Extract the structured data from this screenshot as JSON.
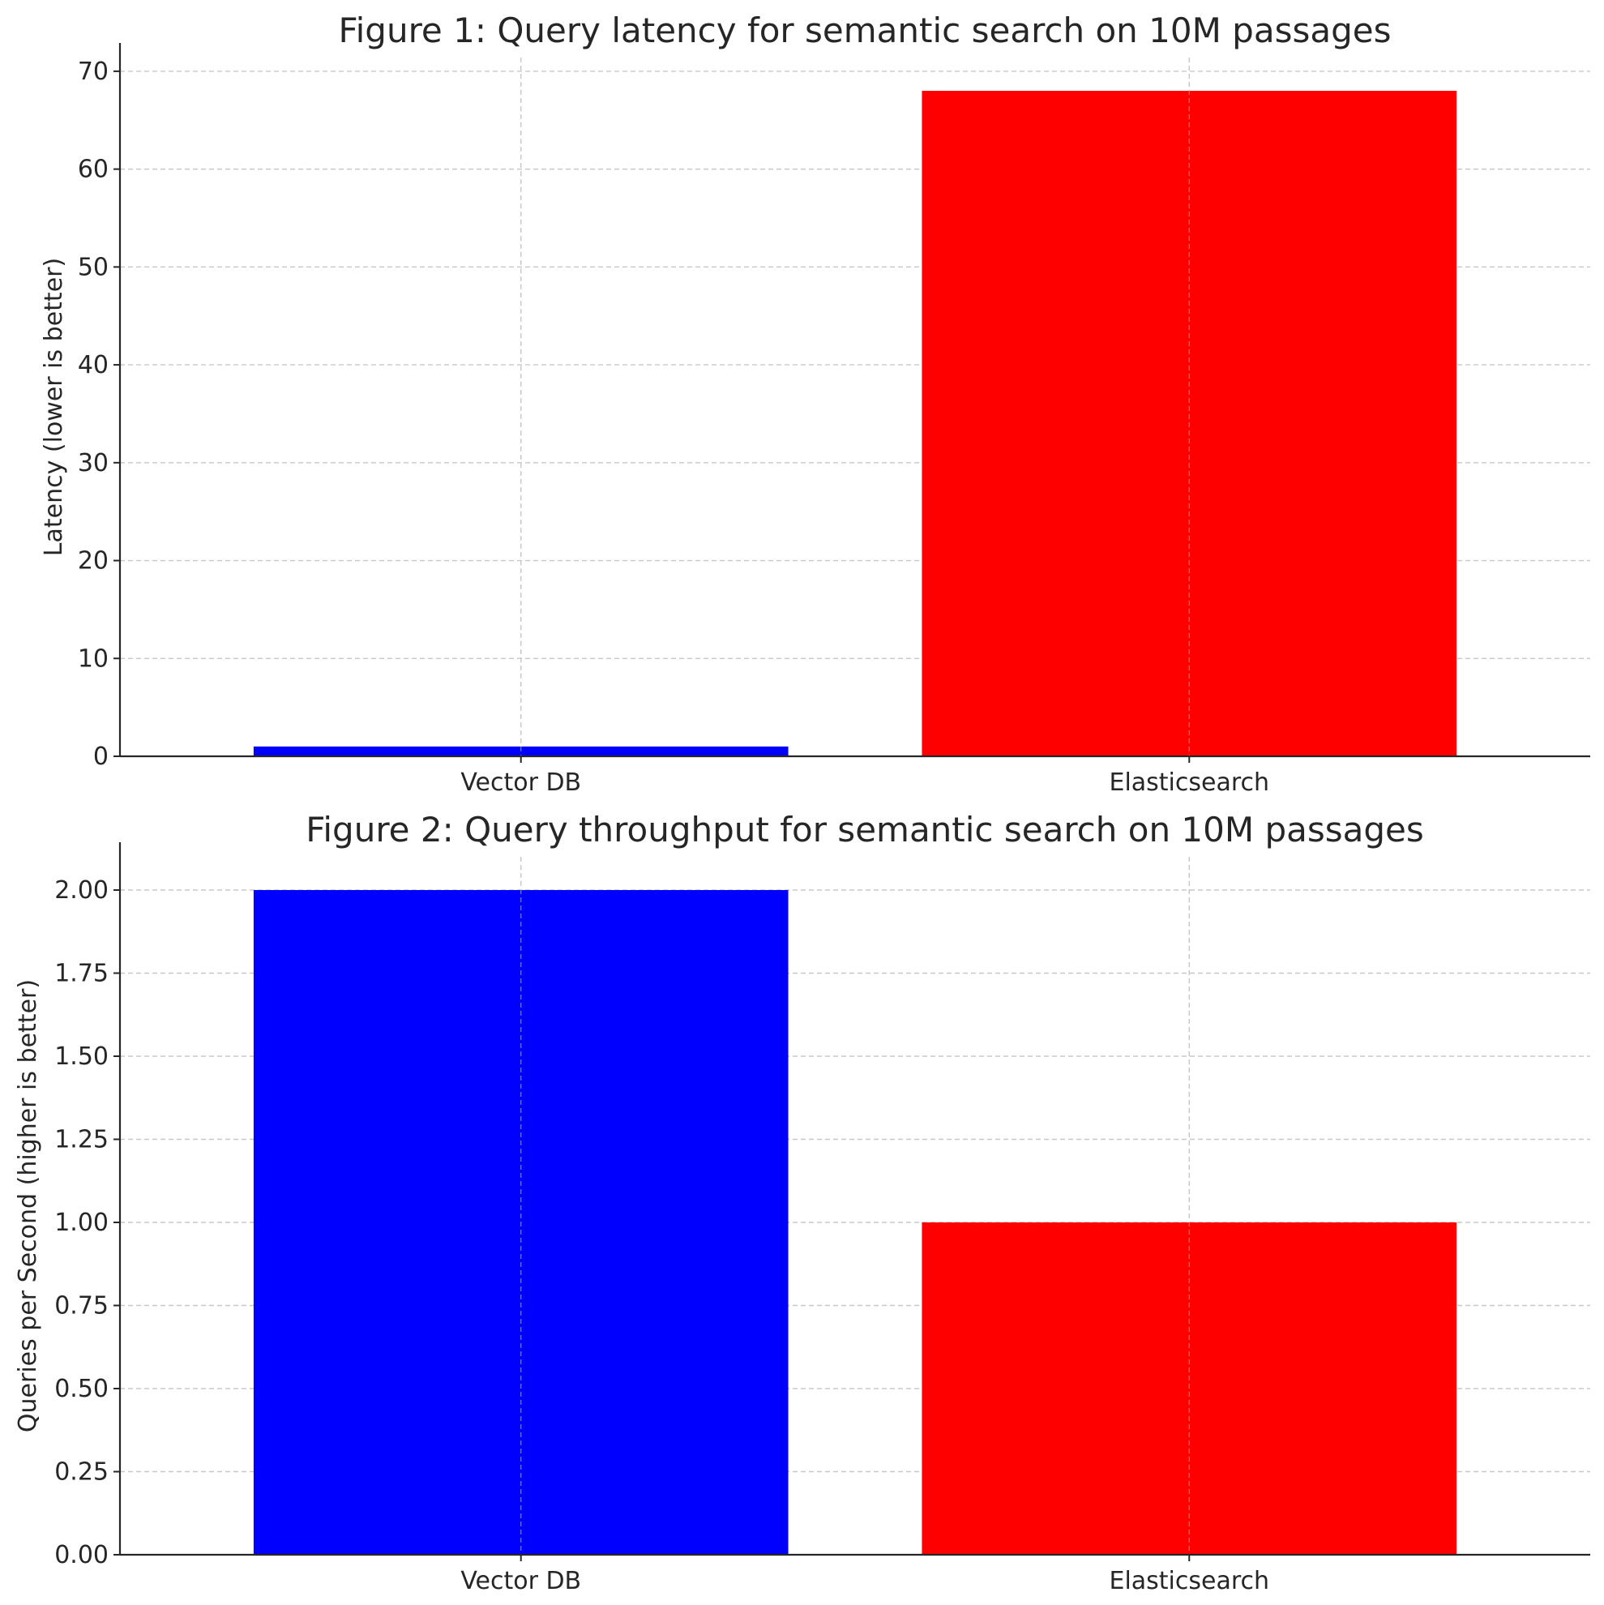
{
  "chart_data": [
    {
      "type": "bar",
      "title": "Figure 1: Query latency for semantic search on 10M passages",
      "xlabel": "",
      "ylabel": "Latency (lower is better)",
      "categories": [
        "Vector DB",
        "Elasticsearch"
      ],
      "values": [
        1,
        68
      ],
      "colors": [
        "#0000ff",
        "#ff0000"
      ],
      "ylim": [
        0,
        71.4
      ],
      "yticks": [
        0,
        10,
        20,
        30,
        40,
        50,
        60,
        70
      ],
      "ytick_labels": [
        "0",
        "10",
        "20",
        "30",
        "40",
        "50",
        "60",
        "70"
      ],
      "grid": true
    },
    {
      "type": "bar",
      "title": "Figure 2: Query throughput for semantic search on 10M passages",
      "xlabel": "",
      "ylabel": "Queries per Second (higher is better)",
      "categories": [
        "Vector DB",
        "Elasticsearch"
      ],
      "values": [
        2.0,
        1.0
      ],
      "colors": [
        "#0000ff",
        "#ff0000"
      ],
      "ylim": [
        0,
        2.1
      ],
      "yticks": [
        0,
        0.25,
        0.5,
        0.75,
        1.0,
        1.25,
        1.5,
        1.75,
        2.0
      ],
      "ytick_labels": [
        "0.00",
        "0.25",
        "0.50",
        "0.75",
        "1.00",
        "1.25",
        "1.50",
        "1.75",
        "2.00"
      ],
      "grid": true
    }
  ]
}
